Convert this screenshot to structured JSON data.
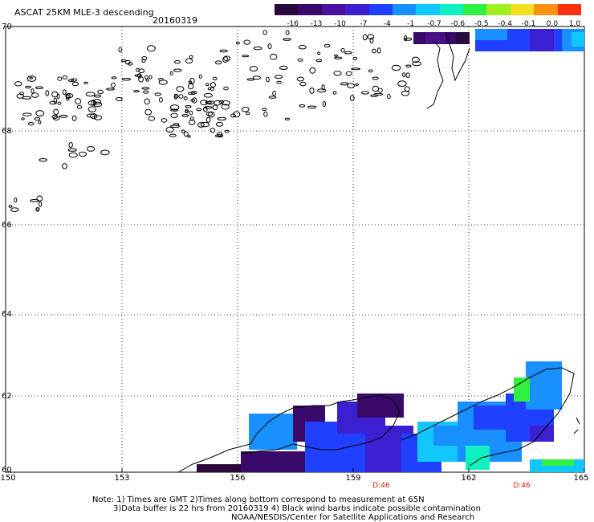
{
  "header": {
    "title": "ASCAT 25KM MLE-3 descending",
    "date": "20160319"
  },
  "colorbar": {
    "labels": [
      "-16",
      "-13",
      "-10",
      "-7",
      "-4",
      "-1",
      "-0.7",
      "-0.6",
      "-0.5",
      "-0.4",
      "-0.1",
      "0.0",
      "1.0"
    ],
    "colors": [
      "#2a0a3a",
      "#3a0a6a",
      "#4a10a0",
      "#3a20d0",
      "#2040ff",
      "#1890ff",
      "#10c8ff",
      "#10f0c0",
      "#30f040",
      "#a0f020",
      "#f0e020",
      "#ff9010",
      "#ff3010"
    ]
  },
  "map": {
    "lat_labels": [
      "70",
      "68",
      "66",
      "64",
      "62",
      "60"
    ],
    "lon_labels": [
      "150",
      "153",
      "156",
      "159",
      "162",
      "165"
    ],
    "time_marks": [
      "D:46",
      "D:46"
    ]
  },
  "notes": {
    "line1": "Note: 1) Times are GMT 2)Times along bottom correspond to measurement at 65N",
    "line2": "3)Data buffer is 22 hrs from 20160319 4) Black wind barbs indicate possible contamination",
    "line3": "NOAA/NESDIS/Center for Satellite Applications and Research"
  }
}
